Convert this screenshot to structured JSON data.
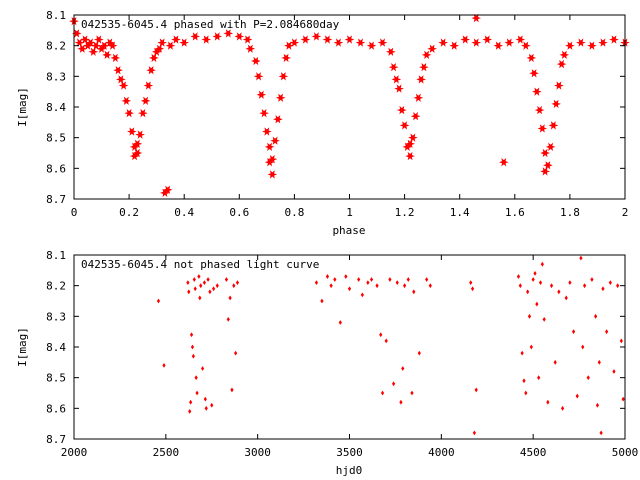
{
  "chart_data": [
    {
      "type": "scatter",
      "title": "042535-6045.4 phased with P=2.084680day",
      "xlabel": "phase",
      "ylabel": "I[mag]",
      "xlim": [
        0,
        2
      ],
      "ylim": [
        8.7,
        8.1
      ],
      "y_inverted": true,
      "xticks": [
        "0",
        "0.2",
        "0.4",
        "0.6",
        "0.8",
        "1",
        "1.2",
        "1.4",
        "1.6",
        "1.8",
        "2"
      ],
      "yticks": [
        "8.1",
        "8.2",
        "8.3",
        "8.4",
        "8.5",
        "8.6",
        "8.7"
      ],
      "color": "#ff0000",
      "marker": "star",
      "grid": false,
      "points": [
        [
          0.0,
          8.12
        ],
        [
          0.01,
          8.16
        ],
        [
          0.02,
          8.19
        ],
        [
          0.03,
          8.21
        ],
        [
          0.04,
          8.18
        ],
        [
          0.05,
          8.2
        ],
        [
          0.06,
          8.19
        ],
        [
          0.07,
          8.22
        ],
        [
          0.08,
          8.2
        ],
        [
          0.09,
          8.18
        ],
        [
          0.1,
          8.21
        ],
        [
          0.11,
          8.2
        ],
        [
          0.12,
          8.23
        ],
        [
          0.13,
          8.19
        ],
        [
          0.14,
          8.2
        ],
        [
          0.15,
          8.24
        ],
        [
          0.16,
          8.28
        ],
        [
          0.17,
          8.31
        ],
        [
          0.18,
          8.33
        ],
        [
          0.19,
          8.38
        ],
        [
          0.2,
          8.42
        ],
        [
          0.21,
          8.48
        ],
        [
          0.22,
          8.53
        ],
        [
          0.22,
          8.56
        ],
        [
          0.23,
          8.52
        ],
        [
          0.23,
          8.55
        ],
        [
          0.24,
          8.49
        ],
        [
          0.25,
          8.42
        ],
        [
          0.26,
          8.38
        ],
        [
          0.27,
          8.33
        ],
        [
          0.28,
          8.28
        ],
        [
          0.29,
          8.24
        ],
        [
          0.3,
          8.22
        ],
        [
          0.31,
          8.21
        ],
        [
          0.32,
          8.19
        ],
        [
          0.33,
          8.68
        ],
        [
          0.34,
          8.67
        ],
        [
          0.35,
          8.2
        ],
        [
          0.37,
          8.18
        ],
        [
          0.4,
          8.19
        ],
        [
          0.44,
          8.17
        ],
        [
          0.48,
          8.18
        ],
        [
          0.52,
          8.17
        ],
        [
          0.56,
          8.16
        ],
        [
          0.6,
          8.17
        ],
        [
          0.63,
          8.18
        ],
        [
          0.64,
          8.21
        ],
        [
          0.66,
          8.25
        ],
        [
          0.67,
          8.3
        ],
        [
          0.68,
          8.36
        ],
        [
          0.69,
          8.42
        ],
        [
          0.7,
          8.48
        ],
        [
          0.71,
          8.53
        ],
        [
          0.71,
          8.58
        ],
        [
          0.72,
          8.62
        ],
        [
          0.72,
          8.57
        ],
        [
          0.73,
          8.51
        ],
        [
          0.74,
          8.44
        ],
        [
          0.75,
          8.37
        ],
        [
          0.76,
          8.3
        ],
        [
          0.77,
          8.24
        ],
        [
          0.78,
          8.2
        ],
        [
          0.8,
          8.19
        ],
        [
          0.84,
          8.18
        ],
        [
          0.88,
          8.17
        ],
        [
          0.92,
          8.18
        ],
        [
          0.96,
          8.19
        ],
        [
          1.0,
          8.18
        ],
        [
          1.04,
          8.19
        ],
        [
          1.08,
          8.2
        ],
        [
          1.12,
          8.19
        ],
        [
          1.15,
          8.22
        ],
        [
          1.16,
          8.27
        ],
        [
          1.17,
          8.31
        ],
        [
          1.18,
          8.34
        ],
        [
          1.19,
          8.41
        ],
        [
          1.2,
          8.46
        ],
        [
          1.21,
          8.53
        ],
        [
          1.22,
          8.56
        ],
        [
          1.22,
          8.52
        ],
        [
          1.23,
          8.5
        ],
        [
          1.24,
          8.43
        ],
        [
          1.25,
          8.37
        ],
        [
          1.26,
          8.31
        ],
        [
          1.27,
          8.27
        ],
        [
          1.28,
          8.23
        ],
        [
          1.3,
          8.21
        ],
        [
          1.34,
          8.19
        ],
        [
          1.38,
          8.2
        ],
        [
          1.42,
          8.18
        ],
        [
          1.46,
          8.11
        ],
        [
          1.46,
          8.19
        ],
        [
          1.5,
          8.18
        ],
        [
          1.54,
          8.2
        ],
        [
          1.56,
          8.58
        ],
        [
          1.58,
          8.19
        ],
        [
          1.62,
          8.18
        ],
        [
          1.64,
          8.2
        ],
        [
          1.66,
          8.24
        ],
        [
          1.67,
          8.29
        ],
        [
          1.68,
          8.35
        ],
        [
          1.69,
          8.41
        ],
        [
          1.7,
          8.47
        ],
        [
          1.71,
          8.55
        ],
        [
          1.71,
          8.61
        ],
        [
          1.72,
          8.59
        ],
        [
          1.73,
          8.53
        ],
        [
          1.74,
          8.46
        ],
        [
          1.75,
          8.39
        ],
        [
          1.76,
          8.33
        ],
        [
          1.77,
          8.26
        ],
        [
          1.78,
          8.23
        ],
        [
          1.8,
          8.2
        ],
        [
          1.84,
          8.19
        ],
        [
          1.88,
          8.2
        ],
        [
          1.92,
          8.19
        ],
        [
          1.96,
          8.18
        ],
        [
          2.0,
          8.19
        ]
      ]
    },
    {
      "type": "scatter",
      "title": "042535-6045.4 not phased light curve",
      "xlabel": "hjd0",
      "ylabel": "I[mag]",
      "xlim": [
        2000,
        5000
      ],
      "ylim": [
        8.7,
        8.1
      ],
      "y_inverted": true,
      "xticks": [
        "2000",
        "2500",
        "3000",
        "3500",
        "4000",
        "4500",
        "5000"
      ],
      "yticks": [
        "8.1",
        "8.2",
        "8.3",
        "8.4",
        "8.5",
        "8.6",
        "8.7"
      ],
      "color": "#ff0000",
      "marker": "diamond",
      "grid": false,
      "points": [
        [
          2460,
          8.25
        ],
        [
          2490,
          8.46
        ],
        [
          2620,
          8.19
        ],
        [
          2625,
          8.22
        ],
        [
          2630,
          8.61
        ],
        [
          2635,
          8.58
        ],
        [
          2640,
          8.36
        ],
        [
          2645,
          8.4
        ],
        [
          2650,
          8.43
        ],
        [
          2655,
          8.18
        ],
        [
          2660,
          8.21
        ],
        [
          2665,
          8.5
        ],
        [
          2670,
          8.55
        ],
        [
          2680,
          8.17
        ],
        [
          2685,
          8.24
        ],
        [
          2690,
          8.2
        ],
        [
          2700,
          8.47
        ],
        [
          2710,
          8.19
        ],
        [
          2715,
          8.57
        ],
        [
          2720,
          8.6
        ],
        [
          2730,
          8.18
        ],
        [
          2740,
          8.22
        ],
        [
          2750,
          8.59
        ],
        [
          2760,
          8.21
        ],
        [
          2780,
          8.2
        ],
        [
          2830,
          8.18
        ],
        [
          2840,
          8.31
        ],
        [
          2850,
          8.24
        ],
        [
          2860,
          8.54
        ],
        [
          2870,
          8.2
        ],
        [
          2880,
          8.42
        ],
        [
          2890,
          8.19
        ],
        [
          3320,
          8.19
        ],
        [
          3350,
          8.25
        ],
        [
          3380,
          8.17
        ],
        [
          3400,
          8.2
        ],
        [
          3420,
          8.18
        ],
        [
          3450,
          8.32
        ],
        [
          3480,
          8.17
        ],
        [
          3500,
          8.21
        ],
        [
          3550,
          8.18
        ],
        [
          3570,
          8.23
        ],
        [
          3600,
          8.19
        ],
        [
          3620,
          8.18
        ],
        [
          3650,
          8.2
        ],
        [
          3670,
          8.36
        ],
        [
          3680,
          8.55
        ],
        [
          3700,
          8.38
        ],
        [
          3720,
          8.18
        ],
        [
          3740,
          8.52
        ],
        [
          3760,
          8.19
        ],
        [
          3780,
          8.58
        ],
        [
          3790,
          8.47
        ],
        [
          3800,
          8.2
        ],
        [
          3820,
          8.18
        ],
        [
          3840,
          8.55
        ],
        [
          3850,
          8.22
        ],
        [
          3880,
          8.42
        ],
        [
          3920,
          8.18
        ],
        [
          3940,
          8.2
        ],
        [
          4160,
          8.19
        ],
        [
          4170,
          8.21
        ],
        [
          4180,
          8.68
        ],
        [
          4190,
          8.54
        ],
        [
          4420,
          8.17
        ],
        [
          4430,
          8.2
        ],
        [
          4440,
          8.42
        ],
        [
          4450,
          8.51
        ],
        [
          4460,
          8.55
        ],
        [
          4470,
          8.22
        ],
        [
          4480,
          8.3
        ],
        [
          4490,
          8.4
        ],
        [
          4500,
          8.18
        ],
        [
          4510,
          8.16
        ],
        [
          4520,
          8.26
        ],
        [
          4530,
          8.5
        ],
        [
          4540,
          8.19
        ],
        [
          4550,
          8.13
        ],
        [
          4560,
          8.31
        ],
        [
          4580,
          8.58
        ],
        [
          4600,
          8.2
        ],
        [
          4620,
          8.45
        ],
        [
          4640,
          8.22
        ],
        [
          4660,
          8.6
        ],
        [
          4680,
          8.24
        ],
        [
          4700,
          8.19
        ],
        [
          4720,
          8.35
        ],
        [
          4740,
          8.56
        ],
        [
          4760,
          8.11
        ],
        [
          4770,
          8.4
        ],
        [
          4780,
          8.2
        ],
        [
          4800,
          8.5
        ],
        [
          4820,
          8.18
        ],
        [
          4840,
          8.3
        ],
        [
          4850,
          8.59
        ],
        [
          4860,
          8.45
        ],
        [
          4870,
          8.68
        ],
        [
          4880,
          8.21
        ],
        [
          4900,
          8.35
        ],
        [
          4920,
          8.19
        ],
        [
          4940,
          8.48
        ],
        [
          4960,
          8.2
        ],
        [
          4980,
          8.38
        ],
        [
          4990,
          8.57
        ]
      ]
    }
  ]
}
